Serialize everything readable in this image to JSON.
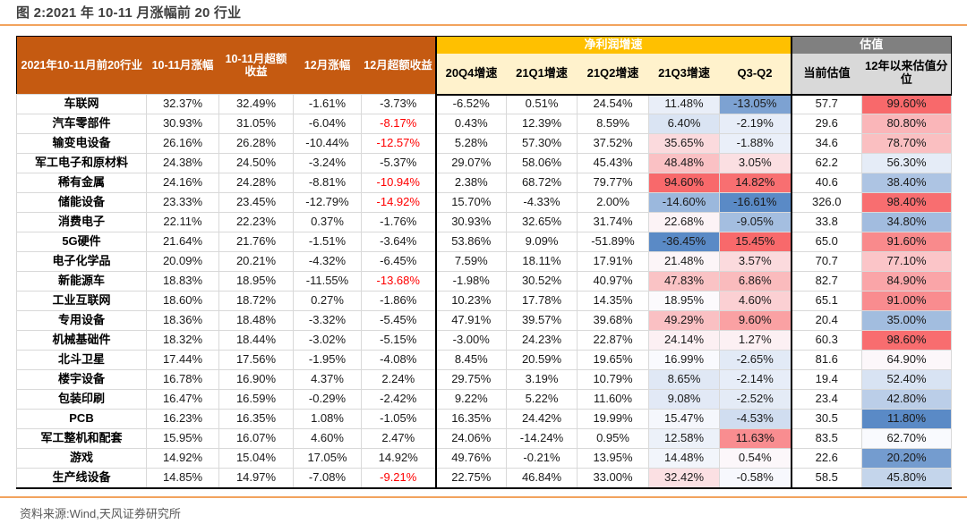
{
  "title": "图 2:2021 年 10-11 月涨幅前 20 行业",
  "source": "资料来源:Wind,天风证券研究所",
  "colors": {
    "header_orange": "#C55A11",
    "band_gold": "#FFC000",
    "band_gray": "#808080",
    "subheader_yellow": "#FFF2CC",
    "subheader_gray": "#D9D9D9",
    "heat_low": "#5A8AC6",
    "heat_mid": "#FCFCFF",
    "heat_high": "#F8696B",
    "negative_text": "#FF0000",
    "rule_orange": "#F2A35E"
  },
  "table": {
    "header": {
      "industry": "2021年10-11月前20行业",
      "gain": "10-11月涨幅",
      "excess": "10-11月超额收益",
      "dec_gain": "12月涨幅",
      "dec_excess": "12月超额收益",
      "profit_group": "净利润增速",
      "q4_20": "20Q4增速",
      "q1_21": "21Q1增速",
      "q2_21": "21Q2增速",
      "q3_21": "21Q3增速",
      "q3_q2": "Q3-Q2",
      "valuation_group": "估值",
      "current_val": "当前估值",
      "val_pct": "12年以来估值分位"
    },
    "rows": [
      {
        "industry": "车联网",
        "gain": 32.37,
        "excess": 32.49,
        "dec_gain": -1.61,
        "dec_excess": -3.73,
        "dec_excess_red": false,
        "q4": -6.52,
        "q1": 0.51,
        "q2": 24.54,
        "q3": 11.48,
        "q3q2": -13.05,
        "pe": 57.7,
        "pct": 99.6
      },
      {
        "industry": "汽车零部件",
        "gain": 30.93,
        "excess": 31.05,
        "dec_gain": -6.04,
        "dec_excess": -8.17,
        "dec_excess_red": true,
        "q4": 0.43,
        "q1": 12.39,
        "q2": 8.59,
        "q3": 6.4,
        "q3q2": -2.19,
        "pe": 29.6,
        "pct": 80.8
      },
      {
        "industry": "输变电设备",
        "gain": 26.16,
        "excess": 26.28,
        "dec_gain": -10.44,
        "dec_excess": -12.57,
        "dec_excess_red": true,
        "q4": 5.28,
        "q1": 57.3,
        "q2": 37.52,
        "q3": 35.65,
        "q3q2": -1.88,
        "pe": 34.6,
        "pct": 78.7
      },
      {
        "industry": "军工电子和原材料",
        "gain": 24.38,
        "excess": 24.5,
        "dec_gain": -3.24,
        "dec_excess": -5.37,
        "dec_excess_red": false,
        "q4": 29.07,
        "q1": 58.06,
        "q2": 45.43,
        "q3": 48.48,
        "q3q2": 3.05,
        "pe": 62.2,
        "pct": 56.3
      },
      {
        "industry": "稀有金属",
        "gain": 24.16,
        "excess": 24.28,
        "dec_gain": -8.81,
        "dec_excess": -10.94,
        "dec_excess_red": true,
        "q4": 2.38,
        "q1": 68.72,
        "q2": 79.77,
        "q3": 94.6,
        "q3q2": 14.82,
        "pe": 40.6,
        "pct": 38.4
      },
      {
        "industry": "储能设备",
        "gain": 23.33,
        "excess": 23.45,
        "dec_gain": -12.79,
        "dec_excess": -14.92,
        "dec_excess_red": true,
        "q4": 15.7,
        "q1": -4.33,
        "q2": 2.0,
        "q3": -14.6,
        "q3q2": -16.61,
        "pe": 326.0,
        "pct": 98.4
      },
      {
        "industry": "消费电子",
        "gain": 22.11,
        "excess": 22.23,
        "dec_gain": 0.37,
        "dec_excess": -1.76,
        "dec_excess_red": false,
        "q4": 30.93,
        "q1": 32.65,
        "q2": 31.74,
        "q3": 22.68,
        "q3q2": -9.05,
        "pe": 33.8,
        "pct": 34.8
      },
      {
        "industry": "5G硬件",
        "gain": 21.64,
        "excess": 21.76,
        "dec_gain": -1.51,
        "dec_excess": -3.64,
        "dec_excess_red": false,
        "q4": 53.86,
        "q1": 9.09,
        "q2": -51.89,
        "q3": -36.45,
        "q3q2": 15.45,
        "pe": 65.0,
        "pct": 91.6
      },
      {
        "industry": "电子化学品",
        "gain": 20.09,
        "excess": 20.21,
        "dec_gain": -4.32,
        "dec_excess": -6.45,
        "dec_excess_red": false,
        "q4": 7.59,
        "q1": 18.11,
        "q2": 17.91,
        "q3": 21.48,
        "q3q2": 3.57,
        "pe": 70.7,
        "pct": 77.1
      },
      {
        "industry": "新能源车",
        "gain": 18.83,
        "excess": 18.95,
        "dec_gain": -11.55,
        "dec_excess": -13.68,
        "dec_excess_red": true,
        "q4": -1.98,
        "q1": 30.52,
        "q2": 40.97,
        "q3": 47.83,
        "q3q2": 6.86,
        "pe": 82.7,
        "pct": 84.9
      },
      {
        "industry": "工业互联网",
        "gain": 18.6,
        "excess": 18.72,
        "dec_gain": 0.27,
        "dec_excess": -1.86,
        "dec_excess_red": false,
        "q4": 10.23,
        "q1": 17.78,
        "q2": 14.35,
        "q3": 18.95,
        "q3q2": 4.6,
        "pe": 65.1,
        "pct": 91.0
      },
      {
        "industry": "专用设备",
        "gain": 18.36,
        "excess": 18.48,
        "dec_gain": -3.32,
        "dec_excess": -5.45,
        "dec_excess_red": false,
        "q4": 47.91,
        "q1": 39.57,
        "q2": 39.68,
        "q3": 49.29,
        "q3q2": 9.6,
        "pe": 20.4,
        "pct": 35.0
      },
      {
        "industry": "机械基础件",
        "gain": 18.32,
        "excess": 18.44,
        "dec_gain": -3.02,
        "dec_excess": -5.15,
        "dec_excess_red": false,
        "q4": -3.0,
        "q1": 24.23,
        "q2": 22.87,
        "q3": 24.14,
        "q3q2": 1.27,
        "pe": 60.3,
        "pct": 98.6
      },
      {
        "industry": "北斗卫星",
        "gain": 17.44,
        "excess": 17.56,
        "dec_gain": -1.95,
        "dec_excess": -4.08,
        "dec_excess_red": false,
        "q4": 8.45,
        "q1": 20.59,
        "q2": 19.65,
        "q3": 16.99,
        "q3q2": -2.65,
        "pe": 81.6,
        "pct": 64.9
      },
      {
        "industry": "楼宇设备",
        "gain": 16.78,
        "excess": 16.9,
        "dec_gain": 4.37,
        "dec_excess": 2.24,
        "dec_excess_red": false,
        "q4": 29.75,
        "q1": 3.19,
        "q2": 10.79,
        "q3": 8.65,
        "q3q2": -2.14,
        "pe": 19.4,
        "pct": 52.4
      },
      {
        "industry": "包装印刷",
        "gain": 16.47,
        "excess": 16.59,
        "dec_gain": -0.29,
        "dec_excess": -2.42,
        "dec_excess_red": false,
        "q4": 9.22,
        "q1": 5.22,
        "q2": 11.6,
        "q3": 9.08,
        "q3q2": -2.52,
        "pe": 23.4,
        "pct": 42.8
      },
      {
        "industry": "PCB",
        "gain": 16.23,
        "excess": 16.35,
        "dec_gain": 1.08,
        "dec_excess": -1.05,
        "dec_excess_red": false,
        "q4": 16.35,
        "q1": 24.42,
        "q2": 19.99,
        "q3": 15.47,
        "q3q2": -4.53,
        "pe": 30.5,
        "pct": 11.8
      },
      {
        "industry": "军工整机和配套",
        "gain": 15.95,
        "excess": 16.07,
        "dec_gain": 4.6,
        "dec_excess": 2.47,
        "dec_excess_red": false,
        "q4": 24.06,
        "q1": -14.24,
        "q2": 0.95,
        "q3": 12.58,
        "q3q2": 11.63,
        "pe": 83.5,
        "pct": 62.7
      },
      {
        "industry": "游戏",
        "gain": 14.92,
        "excess": 15.04,
        "dec_gain": 17.05,
        "dec_excess": 14.92,
        "dec_excess_red": false,
        "q4": 49.76,
        "q1": -0.21,
        "q2": 13.95,
        "q3": 14.48,
        "q3q2": 0.54,
        "pe": 22.6,
        "pct": 20.2
      },
      {
        "industry": "生产线设备",
        "gain": 14.85,
        "excess": 14.97,
        "dec_gain": -7.08,
        "dec_excess": -9.21,
        "dec_excess_red": true,
        "q4": 22.75,
        "q1": 46.84,
        "q2": 33.0,
        "q3": 32.42,
        "q3q2": -0.58,
        "pe": 58.5,
        "pct": 45.8
      }
    ]
  }
}
